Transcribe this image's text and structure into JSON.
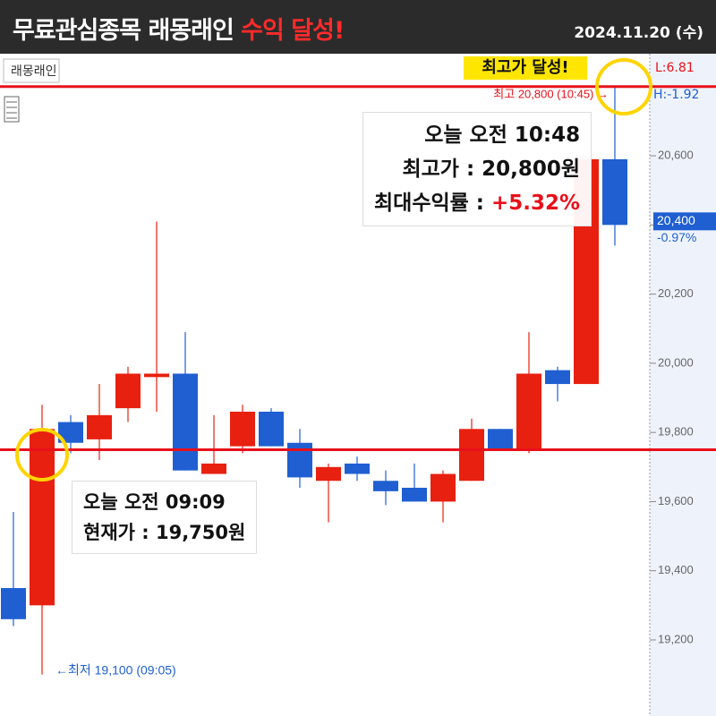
{
  "header": {
    "title": "무료관심종목 래몽래인",
    "title_highlight": "수익 달성!",
    "date": "2024.11.20 (수)"
  },
  "chart_data": {
    "type": "candlestick",
    "name": "래몽래인",
    "open": [
      19350,
      19300,
      19830,
      19780,
      19870,
      19960,
      19970,
      19680,
      19760,
      19860,
      19770,
      19660,
      19710,
      19660,
      19640,
      19600,
      19660,
      19810,
      19750,
      19980,
      19940,
      20590
    ],
    "high": [
      19570,
      19880,
      19850,
      19940,
      19990,
      20410,
      20090,
      19850,
      19880,
      19870,
      19810,
      19710,
      19730,
      19690,
      19710,
      19690,
      19840,
      19810,
      20090,
      19990,
      20600,
      20800
    ],
    "low": [
      19240,
      19100,
      19740,
      19720,
      19830,
      19860,
      19690,
      19680,
      19740,
      19760,
      19640,
      19540,
      19660,
      19590,
      19600,
      19540,
      19660,
      19750,
      19740,
      19890,
      19940,
      20340
    ],
    "close": [
      19260,
      19810,
      19770,
      19850,
      19970,
      19970,
      19690,
      19710,
      19860,
      19760,
      19670,
      19700,
      19680,
      19630,
      19600,
      19680,
      19810,
      19750,
      19970,
      19940,
      20590,
      20400
    ],
    "up_color": "#e8200f",
    "down_color": "#1f5fd1",
    "ylim": [
      18980,
      20890
    ],
    "yticks": [
      {
        "value": 19200,
        "label": "19,200"
      },
      {
        "value": 19400,
        "label": "19,400"
      },
      {
        "value": 19600,
        "label": "19,600"
      },
      {
        "value": 19800,
        "label": "19,800"
      },
      {
        "value": 20000,
        "label": "20,000"
      },
      {
        "value": 20200,
        "label": "20,200"
      },
      {
        "value": 20400,
        "label": "20,400"
      },
      {
        "value": 20600,
        "label": "20,600"
      }
    ],
    "hlines": [
      20800,
      19750
    ],
    "hline_color": "#e8101a",
    "current_price": {
      "value": 20400,
      "label": "20,400"
    },
    "change_label": "-0.97%",
    "axis_notes": [
      "L:6.81",
      "H:-1.92"
    ],
    "high_note": "최고 20,800 (10:45) →",
    "low_note": "←최저 19,100 (09:05)",
    "badge": "최고가 달성!",
    "box_high": {
      "line1": "오늘 오전 10:48",
      "line2": "최고가 : 20,800원",
      "line3": "최대수익률 : ",
      "line3_value": "+5.32%"
    },
    "box_now": {
      "line1": "오늘 오전 09:09",
      "line2": "현재가 : 19,750원"
    }
  }
}
